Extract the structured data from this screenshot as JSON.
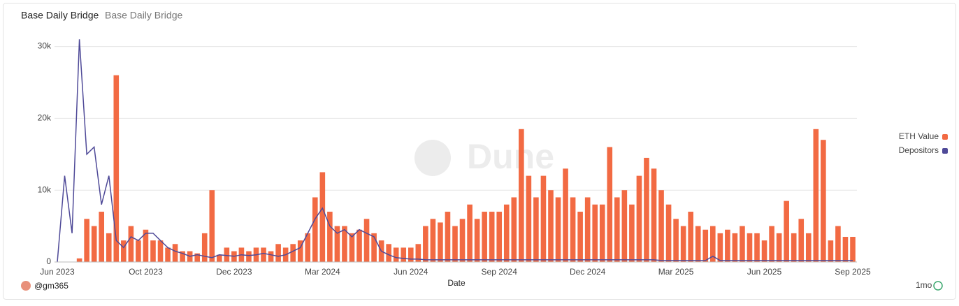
{
  "chart_data": {
    "type": "bar-line",
    "title": "Base Daily Bridge",
    "subtitle": "Base Daily Bridge",
    "x_label": "Date",
    "watermark": "Dune",
    "author": "@gm365",
    "interval": "1mo",
    "legend": "right",
    "categories": [
      "Jun 2023",
      null,
      null,
      null,
      null,
      null,
      null,
      null,
      null,
      null,
      null,
      null,
      "Oct 2023",
      null,
      null,
      null,
      null,
      null,
      null,
      null,
      null,
      null,
      null,
      null,
      "Dec 2023",
      null,
      null,
      null,
      null,
      null,
      null,
      null,
      null,
      null,
      null,
      null,
      "Mar 2024",
      null,
      null,
      null,
      null,
      null,
      null,
      null,
      null,
      null,
      null,
      null,
      "Jun 2024",
      null,
      null,
      null,
      null,
      null,
      null,
      null,
      null,
      null,
      null,
      null,
      "Sep 2024",
      null,
      null,
      null,
      null,
      null,
      null,
      null,
      null,
      null,
      null,
      null,
      "Dec 2024",
      null,
      null,
      null,
      null,
      null,
      null,
      null,
      null,
      null,
      null,
      null,
      "Mar 2025",
      null,
      null,
      null,
      null,
      null,
      null,
      null,
      null,
      null,
      null,
      null,
      "Jun 2025",
      null,
      null,
      null,
      null,
      null,
      null,
      null,
      null,
      null,
      null,
      null,
      "Sep 2025"
    ],
    "series": [
      {
        "name": "ETH Value",
        "color": "#f26a43",
        "kind": "bar",
        "values": [
          0,
          0,
          0,
          500,
          6000,
          5000,
          7000,
          4000,
          26000,
          3000,
          5000,
          3000,
          4500,
          3000,
          3000,
          2000,
          2500,
          1500,
          1500,
          1200,
          4000,
          10000,
          1000,
          2000,
          1500,
          2000,
          1500,
          2000,
          2000,
          1500,
          2500,
          2000,
          2500,
          3000,
          4000,
          9000,
          12500,
          7000,
          5000,
          5000,
          4000,
          4500,
          6000,
          4000,
          3000,
          2500,
          2000,
          2000,
          2000,
          2500,
          5000,
          6000,
          5500,
          7000,
          5000,
          6000,
          8000,
          6000,
          7000,
          7000,
          7000,
          8000,
          9000,
          18500,
          12000,
          9000,
          12000,
          10000,
          9000,
          13000,
          9000,
          7000,
          9000,
          8000,
          8000,
          16000,
          9000,
          10000,
          8000,
          12000,
          14500,
          13000,
          10000,
          8000,
          6000,
          5000,
          7000,
          5000,
          4500,
          5000,
          4000,
          4500,
          4000,
          5000,
          4000,
          4000,
          3000,
          5000,
          4000,
          8500,
          4000,
          6000,
          4000,
          18500,
          17000,
          3000,
          5000,
          3500,
          3500
        ]
      },
      {
        "name": "Depositors",
        "color": "#4f4a98",
        "kind": "line",
        "values": [
          0,
          12000,
          4000,
          31000,
          15000,
          16000,
          8000,
          12000,
          3000,
          2000,
          3500,
          3000,
          4000,
          4000,
          3000,
          2000,
          1500,
          1200,
          800,
          1000,
          800,
          600,
          1000,
          900,
          800,
          1000,
          900,
          1000,
          1200,
          1000,
          800,
          1000,
          1500,
          2000,
          4000,
          6000,
          7500,
          5000,
          4000,
          4500,
          3500,
          4500,
          4000,
          3500,
          1500,
          1000,
          600,
          500,
          400,
          400,
          300,
          300,
          300,
          300,
          300,
          300,
          300,
          300,
          300,
          300,
          300,
          300,
          300,
          300,
          300,
          300,
          300,
          300,
          300,
          300,
          300,
          300,
          300,
          300,
          300,
          300,
          300,
          300,
          300,
          300,
          300,
          300,
          200,
          200,
          200,
          200,
          200,
          200,
          200,
          800,
          200,
          200,
          200,
          200,
          200,
          200,
          200,
          200,
          200,
          200,
          200,
          200,
          200,
          200,
          200,
          200,
          200,
          200,
          200
        ]
      }
    ],
    "ylim": [
      0,
      32000
    ],
    "yticks": [
      0,
      {
        "value": 10000,
        "label": "10k"
      },
      {
        "value": 20000,
        "label": "20k"
      },
      {
        "value": 30000,
        "label": "30k"
      }
    ],
    "grid": true
  }
}
